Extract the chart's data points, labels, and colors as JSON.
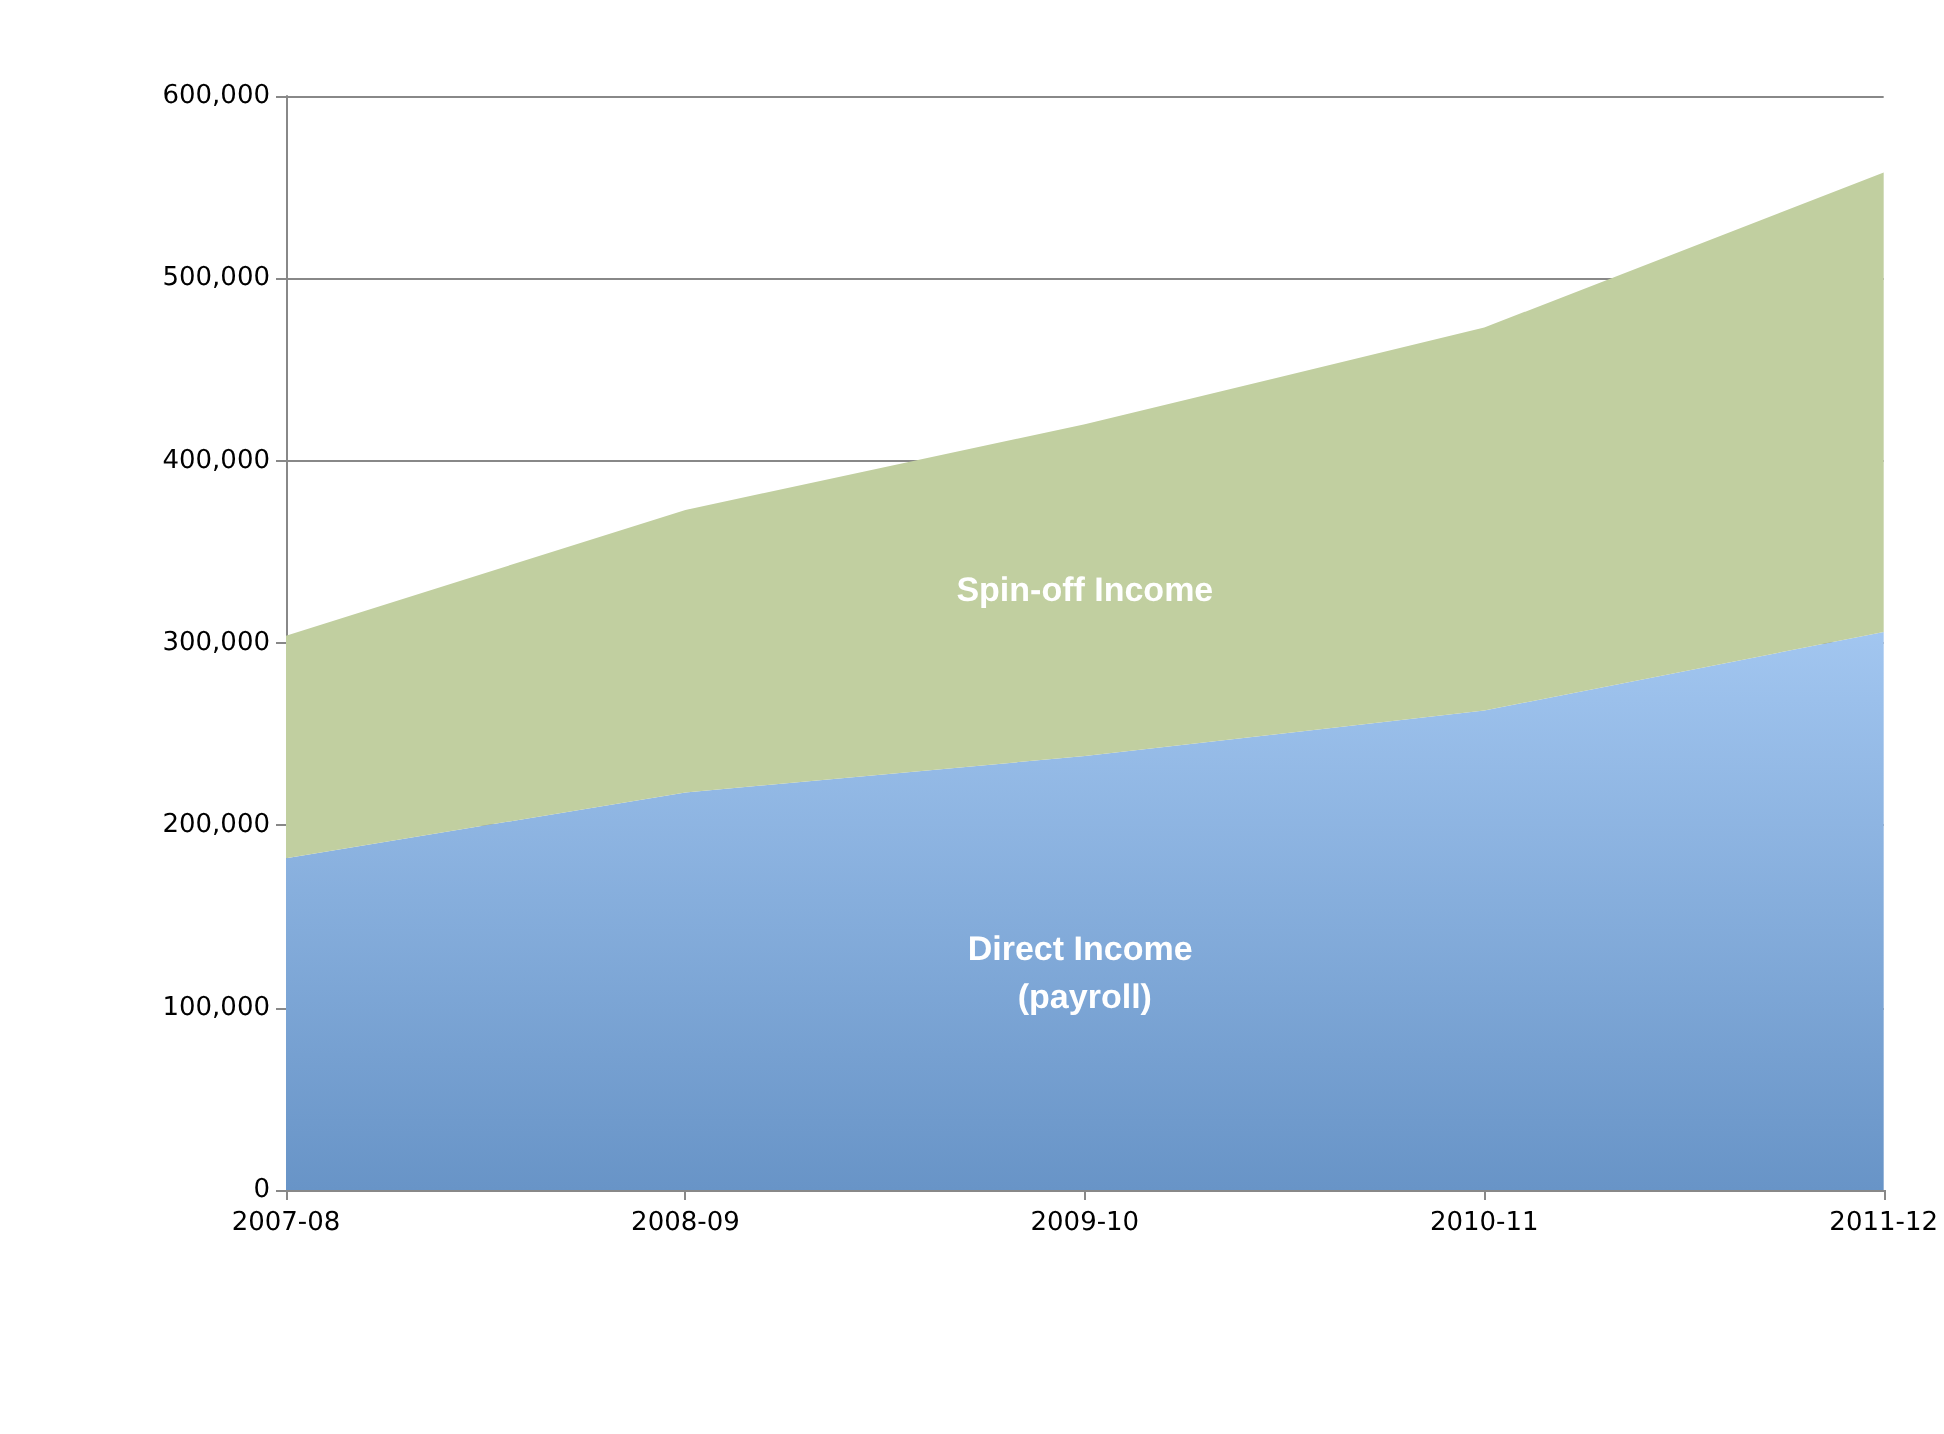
{
  "chart_data": {
    "type": "area",
    "stacked": true,
    "grid": "y",
    "legend": false,
    "categories": [
      "2007-08",
      "2008-09",
      "2009-10",
      "2010-11",
      "2011-12"
    ],
    "series": [
      {
        "name": "Direct Income (payroll)",
        "color": "#7aaeea",
        "values": [
          182000,
          218000,
          238000,
          263000,
          306000
        ]
      },
      {
        "name": "Spin-off Income",
        "color": "#c1cfa0",
        "values": [
          122000,
          155000,
          182000,
          210000,
          252000
        ]
      }
    ],
    "ylim": [
      0,
      600000
    ],
    "yticks": [
      0,
      {
        "value": 100000,
        "label": "100,000"
      },
      {
        "value": 200000,
        "label": "200,000"
      },
      {
        "value": 300000,
        "label": "300,000"
      },
      {
        "value": 400000,
        "label": "400,000"
      },
      {
        "value": 500000,
        "label": "500,000"
      },
      {
        "value": 600000,
        "label": "600,000"
      }
    ]
  }
}
